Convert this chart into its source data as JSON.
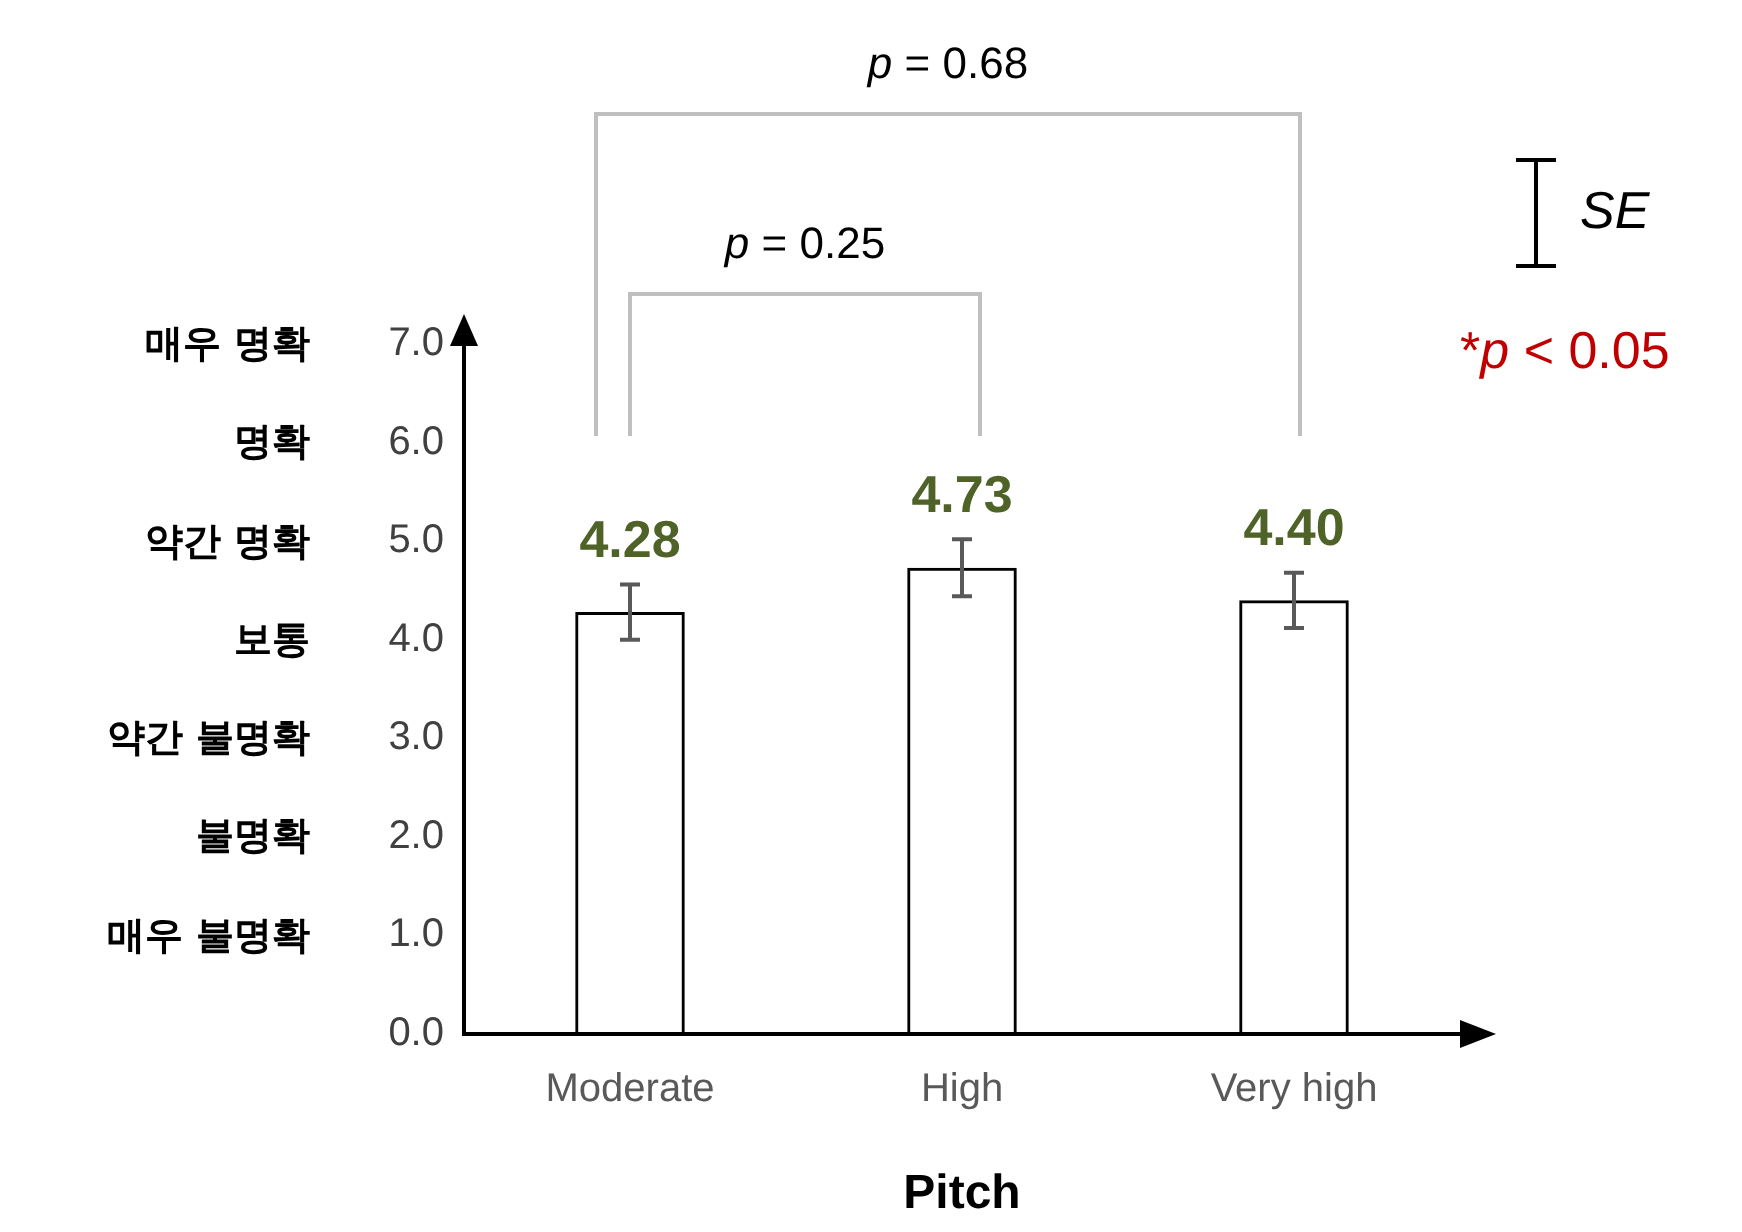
{
  "chart_data": {
    "type": "bar",
    "xlabel": "Pitch",
    "categories": [
      "Moderate",
      "High",
      "Very high"
    ],
    "values": [
      4.28,
      4.73,
      4.4
    ],
    "errors": [
      0.28,
      0.29,
      0.28
    ],
    "color": "#000000",
    "value_labels": [
      "4.28",
      "4.73",
      "4.40"
    ],
    "ylim": [
      0,
      7
    ],
    "yticks": [
      {
        "value": 0,
        "label": "0.0"
      },
      {
        "value": 1,
        "label": "1.0"
      },
      {
        "value": 2,
        "label": "2.0"
      },
      {
        "value": 3,
        "label": "3.0"
      },
      {
        "value": 4,
        "label": "4.0"
      },
      {
        "value": 5,
        "label": "5.0"
      },
      {
        "value": 6,
        "label": "6.0"
      },
      {
        "value": 7,
        "label": "7.0"
      }
    ],
    "grid": false,
    "legend": false,
    "annotations": [
      "p = 0.68",
      "p = 0.25",
      "SE",
      "*p < 0.05",
      "매우 불명확",
      "불명확",
      "약간 불명확",
      "보통",
      "약간 명확",
      "명확",
      "매우 명확"
    ]
  }
}
